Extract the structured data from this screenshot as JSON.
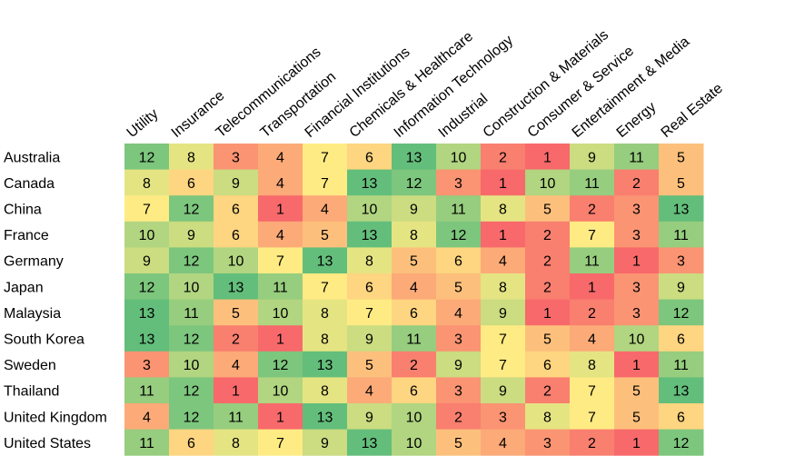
{
  "chart_data": {
    "type": "heatmap",
    "columns": [
      "Utility",
      "Insurance",
      "Telecommunications",
      "Transportation",
      "Financial Institutions",
      "Chemicals & Healthcare",
      "Information Technology",
      "Industrial",
      "Construction & Materials",
      "Consumer & Service",
      "Entertainment & Media",
      "Energy",
      "Real Estate"
    ],
    "rows": [
      "Australia",
      "Canada",
      "China",
      "France",
      "Germany",
      "Japan",
      "Malaysia",
      "South Korea",
      "Sweden",
      "Thailand",
      "United Kingdom",
      "United States"
    ],
    "values": [
      [
        12,
        8,
        3,
        4,
        7,
        6,
        13,
        10,
        2,
        1,
        9,
        11,
        5
      ],
      [
        8,
        6,
        9,
        4,
        7,
        13,
        12,
        3,
        1,
        10,
        11,
        2,
        5
      ],
      [
        7,
        12,
        6,
        1,
        4,
        10,
        9,
        11,
        8,
        5,
        2,
        3,
        13
      ],
      [
        10,
        9,
        6,
        4,
        5,
        13,
        8,
        12,
        1,
        2,
        7,
        3,
        11
      ],
      [
        9,
        12,
        10,
        7,
        13,
        8,
        5,
        6,
        4,
        2,
        11,
        1,
        3
      ],
      [
        12,
        10,
        13,
        11,
        7,
        6,
        4,
        5,
        8,
        2,
        1,
        3,
        9
      ],
      [
        13,
        11,
        5,
        10,
        8,
        7,
        6,
        4,
        9,
        1,
        2,
        3,
        12
      ],
      [
        13,
        12,
        2,
        1,
        8,
        9,
        11,
        3,
        7,
        5,
        4,
        10,
        6
      ],
      [
        3,
        10,
        4,
        12,
        13,
        5,
        2,
        9,
        7,
        6,
        8,
        1,
        11
      ],
      [
        11,
        12,
        1,
        10,
        8,
        4,
        6,
        3,
        9,
        2,
        7,
        5,
        13
      ],
      [
        4,
        12,
        11,
        1,
        13,
        9,
        10,
        2,
        3,
        8,
        7,
        5,
        6
      ],
      [
        11,
        6,
        8,
        7,
        9,
        13,
        10,
        5,
        4,
        3,
        2,
        1,
        12
      ]
    ],
    "value_range": [
      1,
      13
    ],
    "colormap": [
      "#f8696b",
      "#ffeb84",
      "#63be7b"
    ],
    "title": "",
    "legend": "none"
  }
}
